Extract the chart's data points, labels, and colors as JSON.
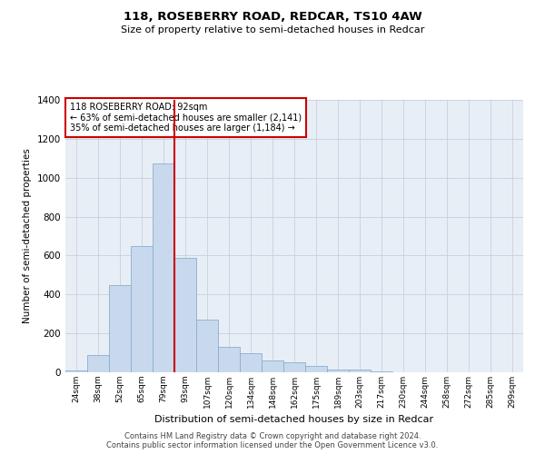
{
  "title1": "118, ROSEBERRY ROAD, REDCAR, TS10 4AW",
  "title2": "Size of property relative to semi-detached houses in Redcar",
  "xlabel": "Distribution of semi-detached houses by size in Redcar",
  "ylabel": "Number of semi-detached properties",
  "footer1": "Contains HM Land Registry data © Crown copyright and database right 2024.",
  "footer2": "Contains public sector information licensed under the Open Government Licence v3.0.",
  "annotation_title": "118 ROSEBERRY ROAD: 92sqm",
  "annotation_line1": "← 63% of semi-detached houses are smaller (2,141)",
  "annotation_line2": "35% of semi-detached houses are larger (1,184) →",
  "bar_color": "#c8d9ee",
  "bar_edge_color": "#8aaece",
  "grid_color": "#c8d0dc",
  "background_color": "#e8eef6",
  "annotation_box_color": "#ffffff",
  "annotation_box_edge": "#cc0000",
  "property_line_color": "#cc0000",
  "bin_labels": [
    "24sqm",
    "38sqm",
    "52sqm",
    "65sqm",
    "79sqm",
    "93sqm",
    "107sqm",
    "120sqm",
    "134sqm",
    "148sqm",
    "162sqm",
    "175sqm",
    "189sqm",
    "203sqm",
    "217sqm",
    "230sqm",
    "244sqm",
    "258sqm",
    "272sqm",
    "285sqm",
    "299sqm"
  ],
  "values": [
    10,
    90,
    450,
    650,
    1075,
    590,
    270,
    130,
    100,
    60,
    50,
    35,
    15,
    12,
    5,
    2,
    2,
    2,
    2,
    2,
    2
  ],
  "property_line_x": 4.5,
  "ylim": [
    0,
    1400
  ],
  "yticks": [
    0,
    200,
    400,
    600,
    800,
    1000,
    1200,
    1400
  ]
}
